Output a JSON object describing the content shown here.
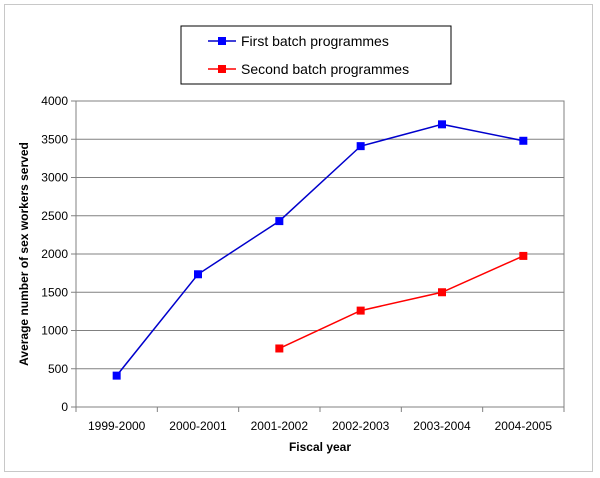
{
  "chart_data": {
    "type": "line",
    "categories": [
      "1999-2000",
      "2000-2001",
      "2001-2002",
      "2002-2003",
      "2003-2004",
      "2004-2005"
    ],
    "series": [
      {
        "name": "First batch programmes",
        "color": "#0000cc",
        "marker_color": "#0000ff",
        "values": [
          410,
          1735,
          2430,
          3410,
          3695,
          3480
        ]
      },
      {
        "name": "Second batch programmes",
        "color": "#ff0000",
        "marker_color": "#ff0000",
        "values": [
          null,
          null,
          765,
          1260,
          1500,
          1975
        ]
      }
    ],
    "xlabel": "Fiscal year",
    "ylabel": "Average number of sex workers served",
    "ylim": [
      0,
      4000
    ],
    "yticks": [
      0,
      500,
      1000,
      1500,
      2000,
      2500,
      3000,
      3500,
      4000
    ],
    "grid": "horizontal",
    "legend_position": "top"
  }
}
